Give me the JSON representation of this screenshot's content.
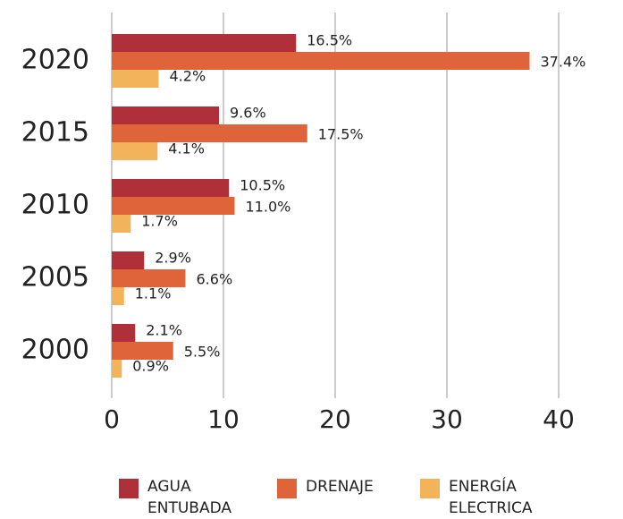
{
  "chart_data": {
    "type": "bar",
    "orientation": "horizontal",
    "categories": [
      "2020",
      "2015",
      "2010",
      "2005",
      "2000"
    ],
    "series": [
      {
        "name": "AGUA ENTUBADA",
        "color": "#b0303a",
        "values": [
          16.5,
          9.6,
          10.5,
          2.9,
          2.1
        ],
        "value_labels": [
          "16.5%",
          "9.6%",
          "10.5%",
          "2.9%",
          "2.1%"
        ]
      },
      {
        "name": "DRENAJE",
        "color": "#e0643a",
        "values": [
          37.4,
          17.5,
          11.0,
          6.6,
          5.5
        ],
        "value_labels": [
          "37.4%",
          "17.5%",
          "11.0%",
          "6.6%",
          "5.5%"
        ]
      },
      {
        "name": "ENERGÍA ELECTRICA",
        "color": "#f2b35a",
        "values": [
          4.2,
          4.1,
          1.7,
          1.1,
          0.9
        ],
        "value_labels": [
          "4.2%",
          "4.1%",
          "1.7%",
          "1.1%",
          "0.9%"
        ]
      }
    ],
    "xlim": [
      0,
      40
    ],
    "xticks": [
      0,
      10,
      20,
      30,
      40
    ],
    "grid": true
  }
}
